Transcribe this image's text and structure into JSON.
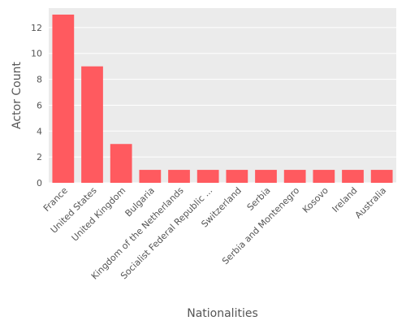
{
  "chart_data": {
    "type": "bar",
    "categories": [
      "France",
      "United States",
      "United Kingdom",
      "Bulgaria",
      "Kingdom of the Netherlands",
      "Socialist Federal Republic ...",
      "Switzerland",
      "Serbia",
      "Serbia and Montenegro",
      "Kosovo",
      "Ireland",
      "Australia"
    ],
    "values": [
      13,
      9,
      3,
      1,
      1,
      1,
      1,
      1,
      1,
      1,
      1,
      1
    ],
    "xlabel": "Nationalities",
    "ylabel": "Actor Count",
    "ylim": [
      0,
      13.5
    ],
    "yticks": [
      0,
      2,
      4,
      6,
      8,
      10,
      12
    ],
    "grid": true,
    "bar_color": "#ff5a5f",
    "background_color": "#ebebeb"
  }
}
